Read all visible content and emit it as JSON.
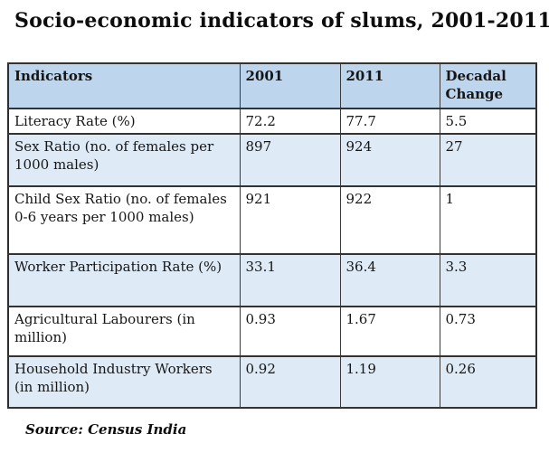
{
  "title": "Socio-economic indicators of slums, 2001-2011",
  "source_note": "Source: Census India",
  "colors": {
    "header_bg": "#BDD6EE",
    "banded_row_bg": "#DEEAF6",
    "plain_row_bg": "#FFFFFF",
    "border": "#333333",
    "text": "#161616"
  },
  "table": {
    "headers": [
      "Indicators",
      "2001",
      "2011",
      "Decadal Change"
    ],
    "rows": [
      [
        "Literacy Rate (%)",
        "72.2",
        "77.7",
        "5.5"
      ],
      [
        "Sex Ratio (no. of females per 1000 males)",
        "897",
        "924",
        "27"
      ],
      [
        "Child Sex Ratio (no. of females 0-6 years per 1000 males)",
        "921",
        "922",
        "1"
      ],
      [
        "Worker Participation Rate (%)",
        "33.1",
        "36.4",
        "3.3"
      ],
      [
        "Agricultural Labourers (in million)",
        "0.93",
        "1.67",
        "0.73"
      ],
      [
        "Household Industry Workers (in million)",
        "0.92",
        "1.19",
        "0.26"
      ]
    ]
  }
}
